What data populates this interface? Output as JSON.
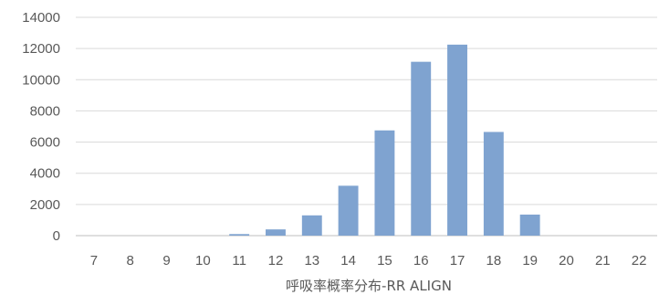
{
  "chart_data": {
    "type": "bar",
    "categories": [
      "7",
      "8",
      "9",
      "10",
      "11",
      "12",
      "13",
      "14",
      "15",
      "16",
      "17",
      "18",
      "19",
      "20",
      "21",
      "22"
    ],
    "values": [
      0,
      0,
      0,
      0,
      100,
      400,
      1300,
      3200,
      6750,
      11150,
      12250,
      6650,
      1350,
      0,
      0,
      0
    ],
    "title": "",
    "xlabel": "呼吸率概率分布-RR ALIGN",
    "ylabel": "",
    "ylim": [
      0,
      14000
    ],
    "yticks": [
      0,
      2000,
      4000,
      6000,
      8000,
      10000,
      12000,
      14000
    ],
    "grid": true,
    "legend": "none",
    "colors": {
      "bar": "#7fa3d0",
      "grid": "#d9d9d9",
      "text": "#595959",
      "background": "#ffffff"
    }
  }
}
